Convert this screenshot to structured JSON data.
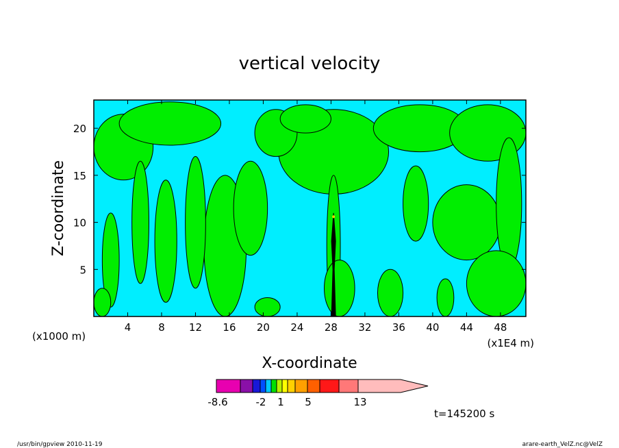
{
  "chart_data": {
    "type": "heatmap",
    "title": "vertical velocity",
    "xlabel": "X-coordinate",
    "ylabel": "Z-coordinate",
    "x_unit_left": "(x1000 m)",
    "x_unit_right": "(x1E4 m)",
    "xlim": [
      0,
      51
    ],
    "ylim": [
      0,
      23
    ],
    "x_ticks": [
      4,
      8,
      12,
      16,
      20,
      24,
      28,
      32,
      36,
      40,
      44,
      48
    ],
    "y_ticks": [
      5,
      10,
      15,
      20
    ],
    "background_level_color": "#00eeff",
    "positive_region_color": "#00ee00",
    "contour_color": "#000000",
    "colorbar": {
      "colors": [
        "#e800b0",
        "#8a10a8",
        "#1818d8",
        "#0050ff",
        "#00c8ff",
        "#00e000",
        "#b8f000",
        "#ffff00",
        "#ffd000",
        "#ffa000",
        "#ff6000",
        "#ff1818",
        "#ff7878",
        "#ffbcbc"
      ],
      "labels": [
        "-8.6",
        "-2",
        "1",
        "5",
        "13"
      ]
    },
    "series": [
      {
        "level": "positive (green)",
        "regions": [
          {
            "cx": 28.3,
            "cy": 17.5,
            "rx": 6.5,
            "ry": 4.5
          },
          {
            "cx": 28.3,
            "cy": 7.5,
            "rx": 0.8,
            "ry": 7.5
          },
          {
            "cx": 29.0,
            "cy": 3.0,
            "rx": 1.8,
            "ry": 3.0
          },
          {
            "cx": 3.5,
            "cy": 18.0,
            "rx": 3.5,
            "ry": 3.5
          },
          {
            "cx": 9.0,
            "cy": 20.5,
            "rx": 6.0,
            "ry": 2.3
          },
          {
            "cx": 15.5,
            "cy": 7.5,
            "rx": 2.5,
            "ry": 7.5
          },
          {
            "cx": 18.5,
            "cy": 11.5,
            "rx": 2.0,
            "ry": 5.0
          },
          {
            "cx": 8.5,
            "cy": 8.0,
            "rx": 1.3,
            "ry": 6.5
          },
          {
            "cx": 12.0,
            "cy": 10.0,
            "rx": 1.2,
            "ry": 7.0
          },
          {
            "cx": 5.5,
            "cy": 10.0,
            "rx": 1.0,
            "ry": 6.5
          },
          {
            "cx": 2.0,
            "cy": 6.0,
            "rx": 1.0,
            "ry": 5.0
          },
          {
            "cx": 21.5,
            "cy": 19.5,
            "rx": 2.5,
            "ry": 2.5
          },
          {
            "cx": 25.0,
            "cy": 21.0,
            "rx": 3.0,
            "ry": 1.5
          },
          {
            "cx": 38.5,
            "cy": 20.0,
            "rx": 5.5,
            "ry": 2.5
          },
          {
            "cx": 46.5,
            "cy": 19.5,
            "rx": 4.5,
            "ry": 3.0
          },
          {
            "cx": 44.0,
            "cy": 10.0,
            "rx": 4.0,
            "ry": 4.0
          },
          {
            "cx": 49.0,
            "cy": 12.0,
            "rx": 1.5,
            "ry": 7.0
          },
          {
            "cx": 38.0,
            "cy": 12.0,
            "rx": 1.5,
            "ry": 4.0
          },
          {
            "cx": 35.0,
            "cy": 2.5,
            "rx": 1.5,
            "ry": 2.5
          },
          {
            "cx": 47.5,
            "cy": 3.5,
            "rx": 3.5,
            "ry": 3.5
          },
          {
            "cx": 41.5,
            "cy": 2.0,
            "rx": 1.0,
            "ry": 2.0
          },
          {
            "cx": 1.0,
            "cy": 1.5,
            "rx": 1.0,
            "ry": 1.5
          },
          {
            "cx": 20.5,
            "cy": 1.0,
            "rx": 1.5,
            "ry": 1.0
          }
        ]
      }
    ]
  },
  "annotations": {
    "time_label": "t=145200 s",
    "footer_left": "/usr/bin/gpview   2010-11-19",
    "footer_right": "arare-earth_VelZ.nc@VelZ"
  }
}
